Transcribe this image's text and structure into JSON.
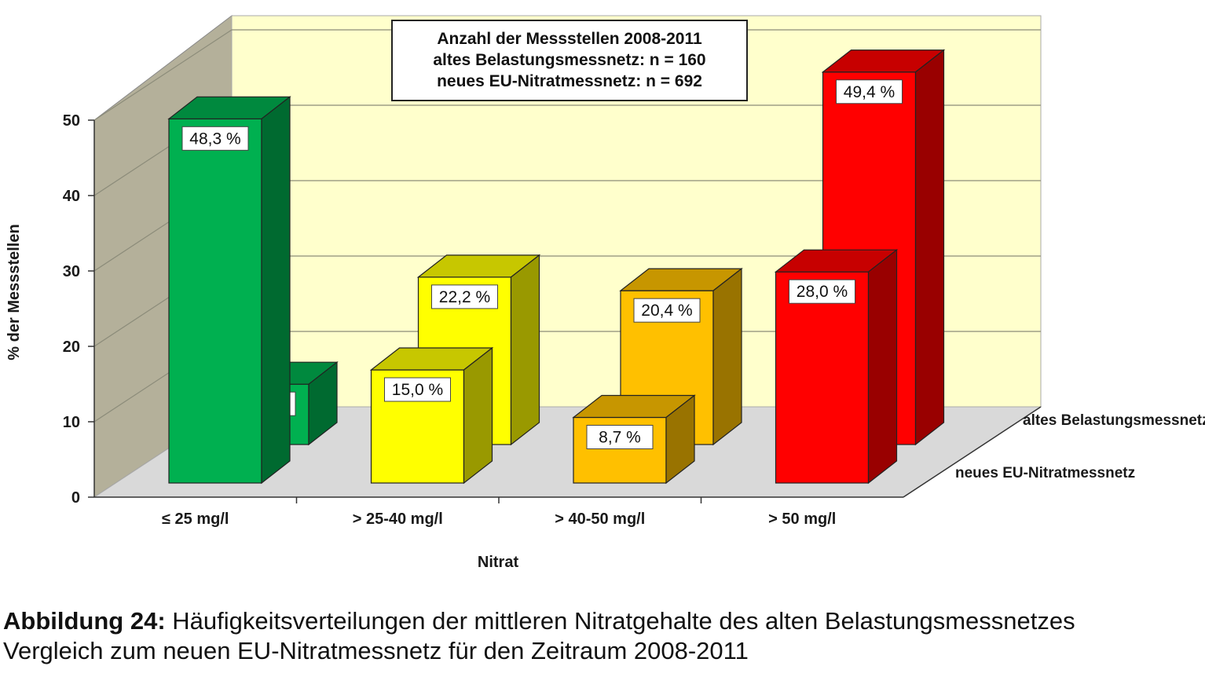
{
  "chart_data": {
    "type": "bar",
    "subtype": "3d-clustered-bar",
    "categories": [
      "≤ 25 mg/l",
      "> 25-40 mg/l",
      "> 40-50 mg/l",
      "> 50 mg/l"
    ],
    "series": [
      {
        "name": "neues EU-Nitratmessnetz",
        "values": [
          48.3,
          15.0,
          8.7,
          28.0
        ],
        "labels": [
          "48,3 %",
          "15,0 %",
          "8,7 %",
          "28,0 %"
        ]
      },
      {
        "name": "altes Belastungsmessnetz",
        "values": [
          8.0,
          22.2,
          20.4,
          49.4
        ],
        "labels": [
          "8,0 %",
          "22,2 %",
          "20,4 %",
          "49,4 %"
        ]
      }
    ],
    "category_colors": [
      "#00b050",
      "#ffff00",
      "#ffc000",
      "#ff0000"
    ],
    "xlabel": "Nitrat",
    "ylabel": "% der Messstellen",
    "ylim": [
      0,
      50
    ],
    "yticks": [
      "0",
      "10",
      "20",
      "30",
      "40",
      "50"
    ],
    "grid": true,
    "annotation": {
      "lines": [
        "Anzahl der Messstellen 2008-2011",
        "altes Belastungsmessnetz: n = 160",
        "neues EU-Nitratmessnetz: n = 692"
      ]
    }
  },
  "caption": {
    "label": "Abbildung 24:",
    "text_line1": " Häufigkeitsverteilungen der mittleren Nitratgehalte des alten Belastungsmessnetzes",
    "text_line2": "Vergleich zum neuen EU-Nitratmessnetz für den Zeitraum 2008-2011"
  }
}
